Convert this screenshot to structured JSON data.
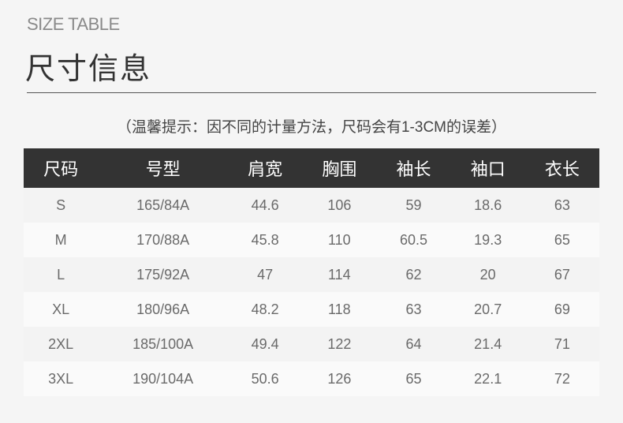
{
  "header": {
    "subtitle": "SIZE TABLE",
    "title": "尺寸信息",
    "note": "（温馨提示：因不同的计量方法，尺码会有1-3CM的误差）"
  },
  "table": {
    "columns": [
      "尺码",
      "号型",
      "肩宽",
      "胸围",
      "袖长",
      "袖口",
      "衣长"
    ],
    "rows": [
      [
        "S",
        "165/84A",
        "44.6",
        "106",
        "59",
        "18.6",
        "63"
      ],
      [
        "M",
        "170/88A",
        "45.8",
        "110",
        "60.5",
        "19.3",
        "65"
      ],
      [
        "L",
        "175/92A",
        "47",
        "114",
        "62",
        "20",
        "67"
      ],
      [
        "XL",
        "180/96A",
        "48.2",
        "118",
        "63",
        "20.7",
        "69"
      ],
      [
        "2XL",
        "185/100A",
        "49.4",
        "122",
        "64",
        "21.4",
        "71"
      ],
      [
        "3XL",
        "190/104A",
        "50.6",
        "126",
        "65",
        "22.1",
        "72"
      ]
    ]
  },
  "colors": {
    "header_bg": "#333333",
    "page_bg": "#f5f5f5"
  }
}
